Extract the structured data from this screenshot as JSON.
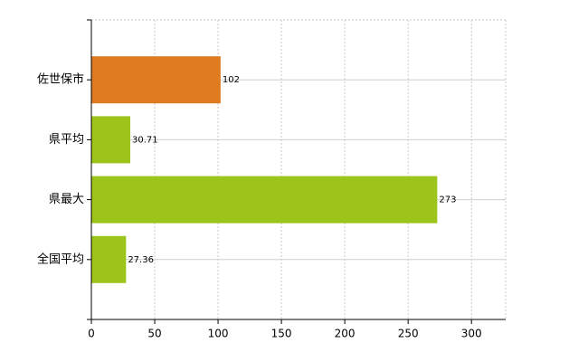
{
  "chart_data": {
    "type": "barh",
    "categories": [
      "佐世保市",
      "県平均",
      "県最大",
      "全国平均"
    ],
    "values": [
      102,
      30.71,
      273,
      27.36
    ],
    "colors": [
      "#e07b22",
      "#9dc41a",
      "#9dc41a",
      "#9dc41a"
    ],
    "xlim": [
      0,
      327
    ],
    "xticks": [
      0,
      50,
      100,
      150,
      200,
      250,
      300
    ],
    "grid": true
  }
}
